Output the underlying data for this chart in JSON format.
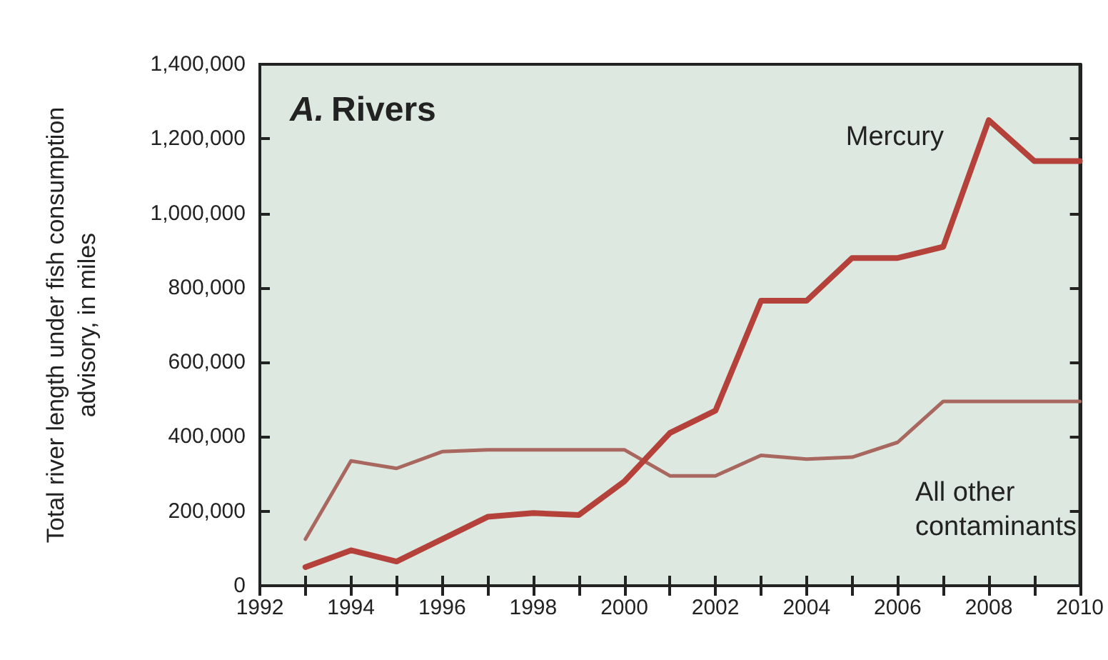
{
  "chart_data": {
    "type": "line",
    "title": "A. Rivers",
    "ylabel": "Total river length under fish consumption advisory, in miles",
    "x": [
      1993,
      1994,
      1995,
      1996,
      1997,
      1998,
      1999,
      2000,
      2001,
      2002,
      2003,
      2004,
      2005,
      2006,
      2007,
      2008,
      2009,
      2010
    ],
    "series": [
      {
        "name": "Mercury",
        "color": "#b5413b",
        "values": [
          50000,
          95000,
          65000,
          125000,
          185000,
          195000,
          190000,
          280000,
          410000,
          470000,
          765000,
          765000,
          880000,
          880000,
          910000,
          1250000,
          1140000,
          1140000
        ]
      },
      {
        "name": "All other contaminants",
        "color": "#a8675f",
        "values": [
          125000,
          335000,
          315000,
          360000,
          365000,
          365000,
          365000,
          365000,
          295000,
          295000,
          350000,
          340000,
          345000,
          385000,
          495000,
          495000,
          495000,
          495000
        ]
      }
    ],
    "xlim": [
      1992,
      2010
    ],
    "xticks": [
      1992,
      1994,
      1996,
      1998,
      2000,
      2002,
      2004,
      2006,
      2008,
      2010
    ],
    "ylim": [
      0,
      1400000
    ],
    "yticks": [
      0,
      {
        "value": 200000,
        "label": "200,000"
      },
      {
        "value": 400000,
        "label": "400,000"
      },
      {
        "value": 600000,
        "label": "600,000"
      },
      {
        "value": 800000,
        "label": "800,000"
      },
      {
        "value": 1000000,
        "label": "1,000,000"
      },
      {
        "value": 1200000,
        "label": "1,200,000"
      },
      {
        "value": 1400000,
        "label": "1,400,000"
      }
    ],
    "grid": false,
    "legend": false,
    "marker": "none",
    "line_style": "solid"
  }
}
